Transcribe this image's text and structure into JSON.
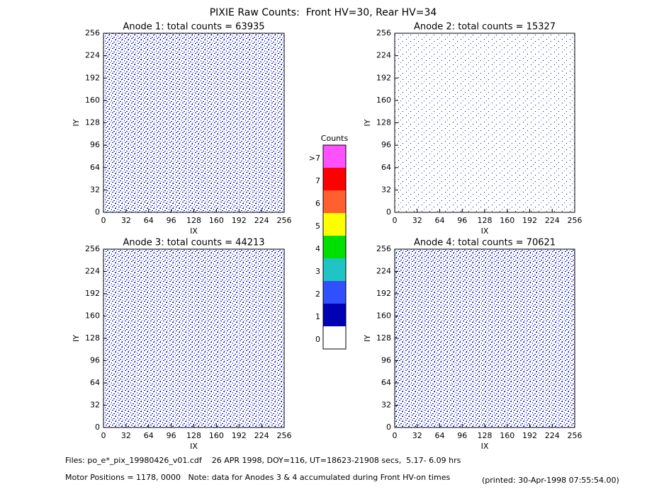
{
  "title": "PIXIE Raw Counts:  Front HV=30, Rear HV=34",
  "chart_data": [
    {
      "type": "heatmap",
      "title": "Anode 1: total counts = 63935",
      "xlabel": "IX",
      "ylabel": "IY",
      "xlim": [
        0,
        256
      ],
      "ylim": [
        0,
        256
      ],
      "xticks": [
        0,
        32,
        64,
        96,
        128,
        160,
        192,
        224,
        256
      ],
      "yticks": [
        0,
        32,
        64,
        96,
        128,
        160,
        192,
        224,
        256
      ]
    },
    {
      "type": "heatmap",
      "title": "Anode 2: total counts = 15327",
      "xlabel": "IX",
      "ylabel": "IY",
      "xlim": [
        0,
        256
      ],
      "ylim": [
        0,
        256
      ],
      "xticks": [
        0,
        32,
        64,
        96,
        128,
        160,
        192,
        224,
        256
      ],
      "yticks": [
        0,
        32,
        64,
        96,
        128,
        160,
        192,
        224,
        256
      ]
    },
    {
      "type": "heatmap",
      "title": "Anode 3: total counts = 44213",
      "xlabel": "IX",
      "ylabel": "IY",
      "xlim": [
        0,
        256
      ],
      "ylim": [
        0,
        256
      ],
      "xticks": [
        0,
        32,
        64,
        96,
        128,
        160,
        192,
        224,
        256
      ],
      "yticks": [
        0,
        32,
        64,
        96,
        128,
        160,
        192,
        224,
        256
      ]
    },
    {
      "type": "heatmap",
      "title": "Anode 4: total counts = 70621",
      "xlabel": "IX",
      "ylabel": "IY",
      "xlim": [
        0,
        256
      ],
      "ylim": [
        0,
        256
      ],
      "xticks": [
        0,
        32,
        64,
        96,
        128,
        160,
        192,
        224,
        256
      ],
      "yticks": [
        0,
        32,
        64,
        96,
        128,
        160,
        192,
        224,
        256
      ]
    }
  ],
  "colorbar": {
    "title": "Counts",
    "levels": [
      {
        "label": "0",
        "color": "#ffffff"
      },
      {
        "label": "1",
        "color": "#0000b4"
      },
      {
        "label": "2",
        "color": "#3050ff"
      },
      {
        "label": "3",
        "color": "#20c4c4"
      },
      {
        "label": "4",
        "color": "#00e000"
      },
      {
        "label": "5",
        "color": "#ffff00"
      },
      {
        "label": "6",
        "color": "#ff6030"
      },
      {
        "label": "7",
        "color": "#ff0000"
      },
      {
        "label": ">7",
        "color": "#ff50ff"
      }
    ]
  },
  "footer": {
    "files": "Files: po_e*_pix_19980426_v01.cdf    26 APR 1998, DOY=116, UT=18623-21908 secs,  5.17- 6.09 hrs",
    "motor": "Motor Positions = 1178, 0000   Note: data for Anodes 3 & 4 accumulated during Front HV-on times",
    "printed": "(printed: 30-Apr-1998 07:55:54.00)"
  }
}
